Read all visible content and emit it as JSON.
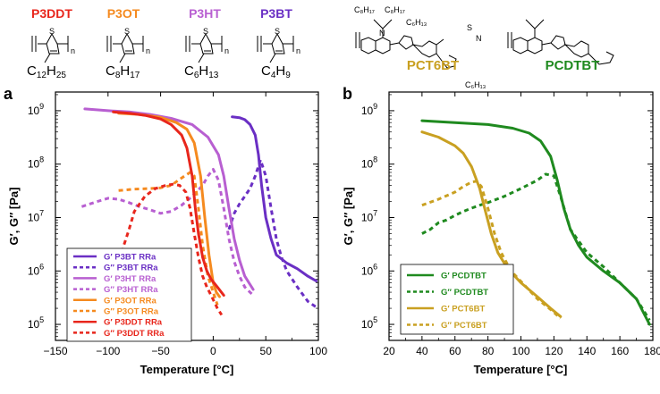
{
  "structures": {
    "left": [
      {
        "name": "P3DDT",
        "color": "#e8261c",
        "side_chain": "C",
        "sub": "12",
        "h": "H",
        "hsub": "25"
      },
      {
        "name": "P3OT",
        "color": "#f58a1f",
        "side_chain": "C",
        "sub": "8",
        "h": "H",
        "hsub": "17"
      },
      {
        "name": "P3HT",
        "color": "#b85fd1",
        "side_chain": "C",
        "sub": "6",
        "h": "H",
        "hsub": "13"
      },
      {
        "name": "P3BT",
        "color": "#6a2fc4",
        "side_chain": "C",
        "sub": "4",
        "h": "H",
        "hsub": "9"
      }
    ],
    "thiophene_atom": "S",
    "repeat_label": "n",
    "right": [
      {
        "name": "PCT6BT",
        "color": "#c9a021"
      },
      {
        "name": "PCDTBT",
        "color": "#1f8a1f"
      }
    ],
    "chem_labels": [
      "C₈H₁₇",
      "C₈H₁₇",
      "C₆H₁₃",
      "C₆H₁₃",
      "N",
      "S",
      "N"
    ]
  },
  "chart_data": [
    {
      "panel": "a",
      "type": "line",
      "xlabel": "Temperature [°C]",
      "ylabel": "G′, G″ [Pa]",
      "xlim": [
        -150,
        100
      ],
      "ylim_log10": [
        4.7,
        9.35
      ],
      "y_scale": "log",
      "xticks": [
        -150,
        -100,
        -50,
        0,
        50,
        100
      ],
      "xtick_labels": [
        "−150",
        "−100",
        "−50",
        "0",
        "50",
        "100"
      ],
      "yticks_exp": [
        5,
        6,
        7,
        8,
        9
      ],
      "ytick_base": "10",
      "legend_position": "bottom-left",
      "series": [
        {
          "name": "G′ P3BT RRa",
          "color": "#6a2fc4",
          "dash": false,
          "x": [
            18,
            25,
            30,
            35,
            40,
            43,
            46,
            50,
            55,
            60,
            70,
            80,
            90,
            98
          ],
          "y": [
            770000000.0,
            740000000.0,
            680000000.0,
            550000000.0,
            350000000.0,
            150000000.0,
            40000000.0,
            10000000.0,
            4000000.0,
            2000000.0,
            1400000.0,
            1100000.0,
            800000.0,
            650000.0
          ]
        },
        {
          "name": "G″ P3BT RRa",
          "color": "#6a2fc4",
          "dash": true,
          "x": [
            15,
            20,
            25,
            30,
            35,
            40,
            45,
            50,
            55,
            60,
            65,
            70,
            80,
            90,
            98
          ],
          "y": [
            6000000.0,
            12000000.0,
            18000000.0,
            25000000.0,
            35000000.0,
            60000000.0,
            120000000.0,
            60000000.0,
            15000000.0,
            4000000.0,
            1800000.0,
            1000000.0,
            500000.0,
            270000.0,
            210000.0
          ]
        },
        {
          "name": "G′ P3HT RRa",
          "color": "#b85fd1",
          "dash": false,
          "x": [
            -122,
            -100,
            -80,
            -60,
            -40,
            -20,
            -5,
            5,
            10,
            15,
            20,
            25,
            30,
            38
          ],
          "y": [
            1080000000.0,
            1000000000.0,
            950000000.0,
            850000000.0,
            720000000.0,
            550000000.0,
            320000000.0,
            150000000.0,
            60000000.0,
            15000000.0,
            4000000.0,
            1600000.0,
            800000.0,
            450000.0
          ]
        },
        {
          "name": "G″ P3HT RRa",
          "color": "#b85fd1",
          "dash": true,
          "x": [
            -125,
            -110,
            -100,
            -90,
            -80,
            -70,
            -60,
            -50,
            -40,
            -30,
            -20,
            -10,
            -5,
            0,
            5,
            10,
            15,
            20,
            25,
            30,
            38
          ],
          "y": [
            16000000.0,
            20000000.0,
            23000000.0,
            22000000.0,
            19000000.0,
            16000000.0,
            14000000.0,
            12000000.0,
            13000000.0,
            17000000.0,
            25000000.0,
            40000000.0,
            60000000.0,
            80000000.0,
            50000000.0,
            15000000.0,
            4000000.0,
            1500000.0,
            800000.0,
            500000.0,
            350000.0
          ]
        },
        {
          "name": "G′ P3OT RRa",
          "color": "#f58a1f",
          "dash": false,
          "x": [
            -90,
            -70,
            -50,
            -35,
            -25,
            -18,
            -12,
            -8,
            -4,
            0,
            3,
            6
          ],
          "y": [
            900000000.0,
            850000000.0,
            750000000.0,
            600000000.0,
            450000000.0,
            250000000.0,
            60000000.0,
            10000000.0,
            2000000.0,
            600000.0,
            400000.0,
            330000.0
          ]
        },
        {
          "name": "G″ P3OT RRa",
          "color": "#f58a1f",
          "dash": true,
          "x": [
            -90,
            -75,
            -60,
            -50,
            -40,
            -30,
            -22,
            -18,
            -14,
            -10,
            -5,
            0,
            4
          ],
          "y": [
            32000000.0,
            34000000.0,
            35000000.0,
            36000000.0,
            40000000.0,
            55000000.0,
            70000000.0,
            60000000.0,
            15000000.0,
            3000000.0,
            800000.0,
            400000.0,
            230000.0
          ]
        },
        {
          "name": "G′ P3DDT RRa",
          "color": "#e8261c",
          "dash": false,
          "x": [
            -95,
            -80,
            -65,
            -50,
            -40,
            -30,
            -25,
            -20,
            -17,
            -14,
            -10,
            -6,
            -2,
            4,
            10
          ],
          "y": [
            950000000.0,
            900000000.0,
            820000000.0,
            700000000.0,
            550000000.0,
            350000000.0,
            200000000.0,
            60000000.0,
            15000000.0,
            5000000.0,
            1800000.0,
            1000000.0,
            700000.0,
            500000.0,
            350000.0
          ]
        },
        {
          "name": "G″ P3DDT RRa",
          "color": "#e8261c",
          "dash": true,
          "x": [
            -90,
            -88,
            -85,
            -80,
            -75,
            -65,
            -55,
            -45,
            -38,
            -32,
            -26,
            -22,
            -18,
            -14,
            -10,
            -6,
            -2,
            4,
            8
          ],
          "y": [
            800000.0,
            1500000.0,
            3000000.0,
            6000000.0,
            13000000.0,
            25000000.0,
            35000000.0,
            40000000.0,
            42000000.0,
            40000000.0,
            30000000.0,
            15000000.0,
            5000000.0,
            1800000.0,
            800000.0,
            500000.0,
            350000.0,
            200000.0,
            150000.0
          ]
        }
      ]
    },
    {
      "panel": "b",
      "type": "line",
      "xlabel": "Temperature [°C]",
      "ylabel": "G′, G″ [Pa]",
      "xlim": [
        20,
        180
      ],
      "ylim_log10": [
        4.7,
        9.35
      ],
      "y_scale": "log",
      "xticks": [
        20,
        40,
        60,
        80,
        100,
        120,
        140,
        160,
        180
      ],
      "xtick_labels": [
        "20",
        "40",
        "60",
        "80",
        "100",
        "120",
        "140",
        "160",
        "180"
      ],
      "yticks_exp": [
        5,
        6,
        7,
        8,
        9
      ],
      "ytick_base": "10",
      "legend_position": "bottom-left",
      "series": [
        {
          "name": "G′ PCDTBT",
          "color": "#1f8a1f",
          "dash": false,
          "x": [
            40,
            60,
            80,
            95,
            105,
            112,
            118,
            122,
            126,
            130,
            135,
            140,
            150,
            160,
            170,
            178
          ],
          "y": [
            650000000.0,
            600000000.0,
            550000000.0,
            470000000.0,
            380000000.0,
            270000000.0,
            140000000.0,
            50000000.0,
            15000000.0,
            6000000.0,
            3000000.0,
            1800000.0,
            1000000.0,
            600000.0,
            300000.0,
            100000.0
          ]
        },
        {
          "name": "G″ PCDTBT",
          "color": "#1f8a1f",
          "dash": true,
          "x": [
            40,
            45,
            50,
            55,
            60,
            65,
            70,
            75,
            80,
            90,
            100,
            110,
            115,
            120,
            125,
            130,
            140,
            150,
            160,
            170,
            178
          ],
          "y": [
            5000000.0,
            6000000.0,
            8000000.0,
            9000000.0,
            11000000.0,
            13000000.0,
            15000000.0,
            17000000.0,
            19000000.0,
            25000000.0,
            35000000.0,
            50000000.0,
            65000000.0,
            60000000.0,
            20000000.0,
            6000000.0,
            2200000.0,
            1200000.0,
            600000.0,
            300000.0,
            120000.0
          ]
        },
        {
          "name": "G′ PCT6BT",
          "color": "#c9a021",
          "dash": false,
          "x": [
            40,
            50,
            60,
            65,
            70,
            75,
            78,
            82,
            86,
            92,
            100,
            110,
            118,
            124
          ],
          "y": [
            400000000.0,
            320000000.0,
            220000000.0,
            160000000.0,
            90000000.0,
            35000000.0,
            15000000.0,
            5000000.0,
            2200000.0,
            1100000.0,
            600000.0,
            330000.0,
            200000.0,
            140000.0
          ]
        },
        {
          "name": "G″ PCT6BT",
          "color": "#c9a021",
          "dash": true,
          "x": [
            40,
            50,
            60,
            65,
            70,
            73,
            76,
            80,
            84,
            88,
            94,
            102,
            110,
            118,
            124
          ],
          "y": [
            17000000.0,
            22000000.0,
            30000000.0,
            38000000.0,
            46000000.0,
            48000000.0,
            38000000.0,
            15000000.0,
            5000000.0,
            2200000.0,
            1000000.0,
            550000.0,
            300000.0,
            190000.0,
            130000.0
          ]
        }
      ]
    }
  ]
}
